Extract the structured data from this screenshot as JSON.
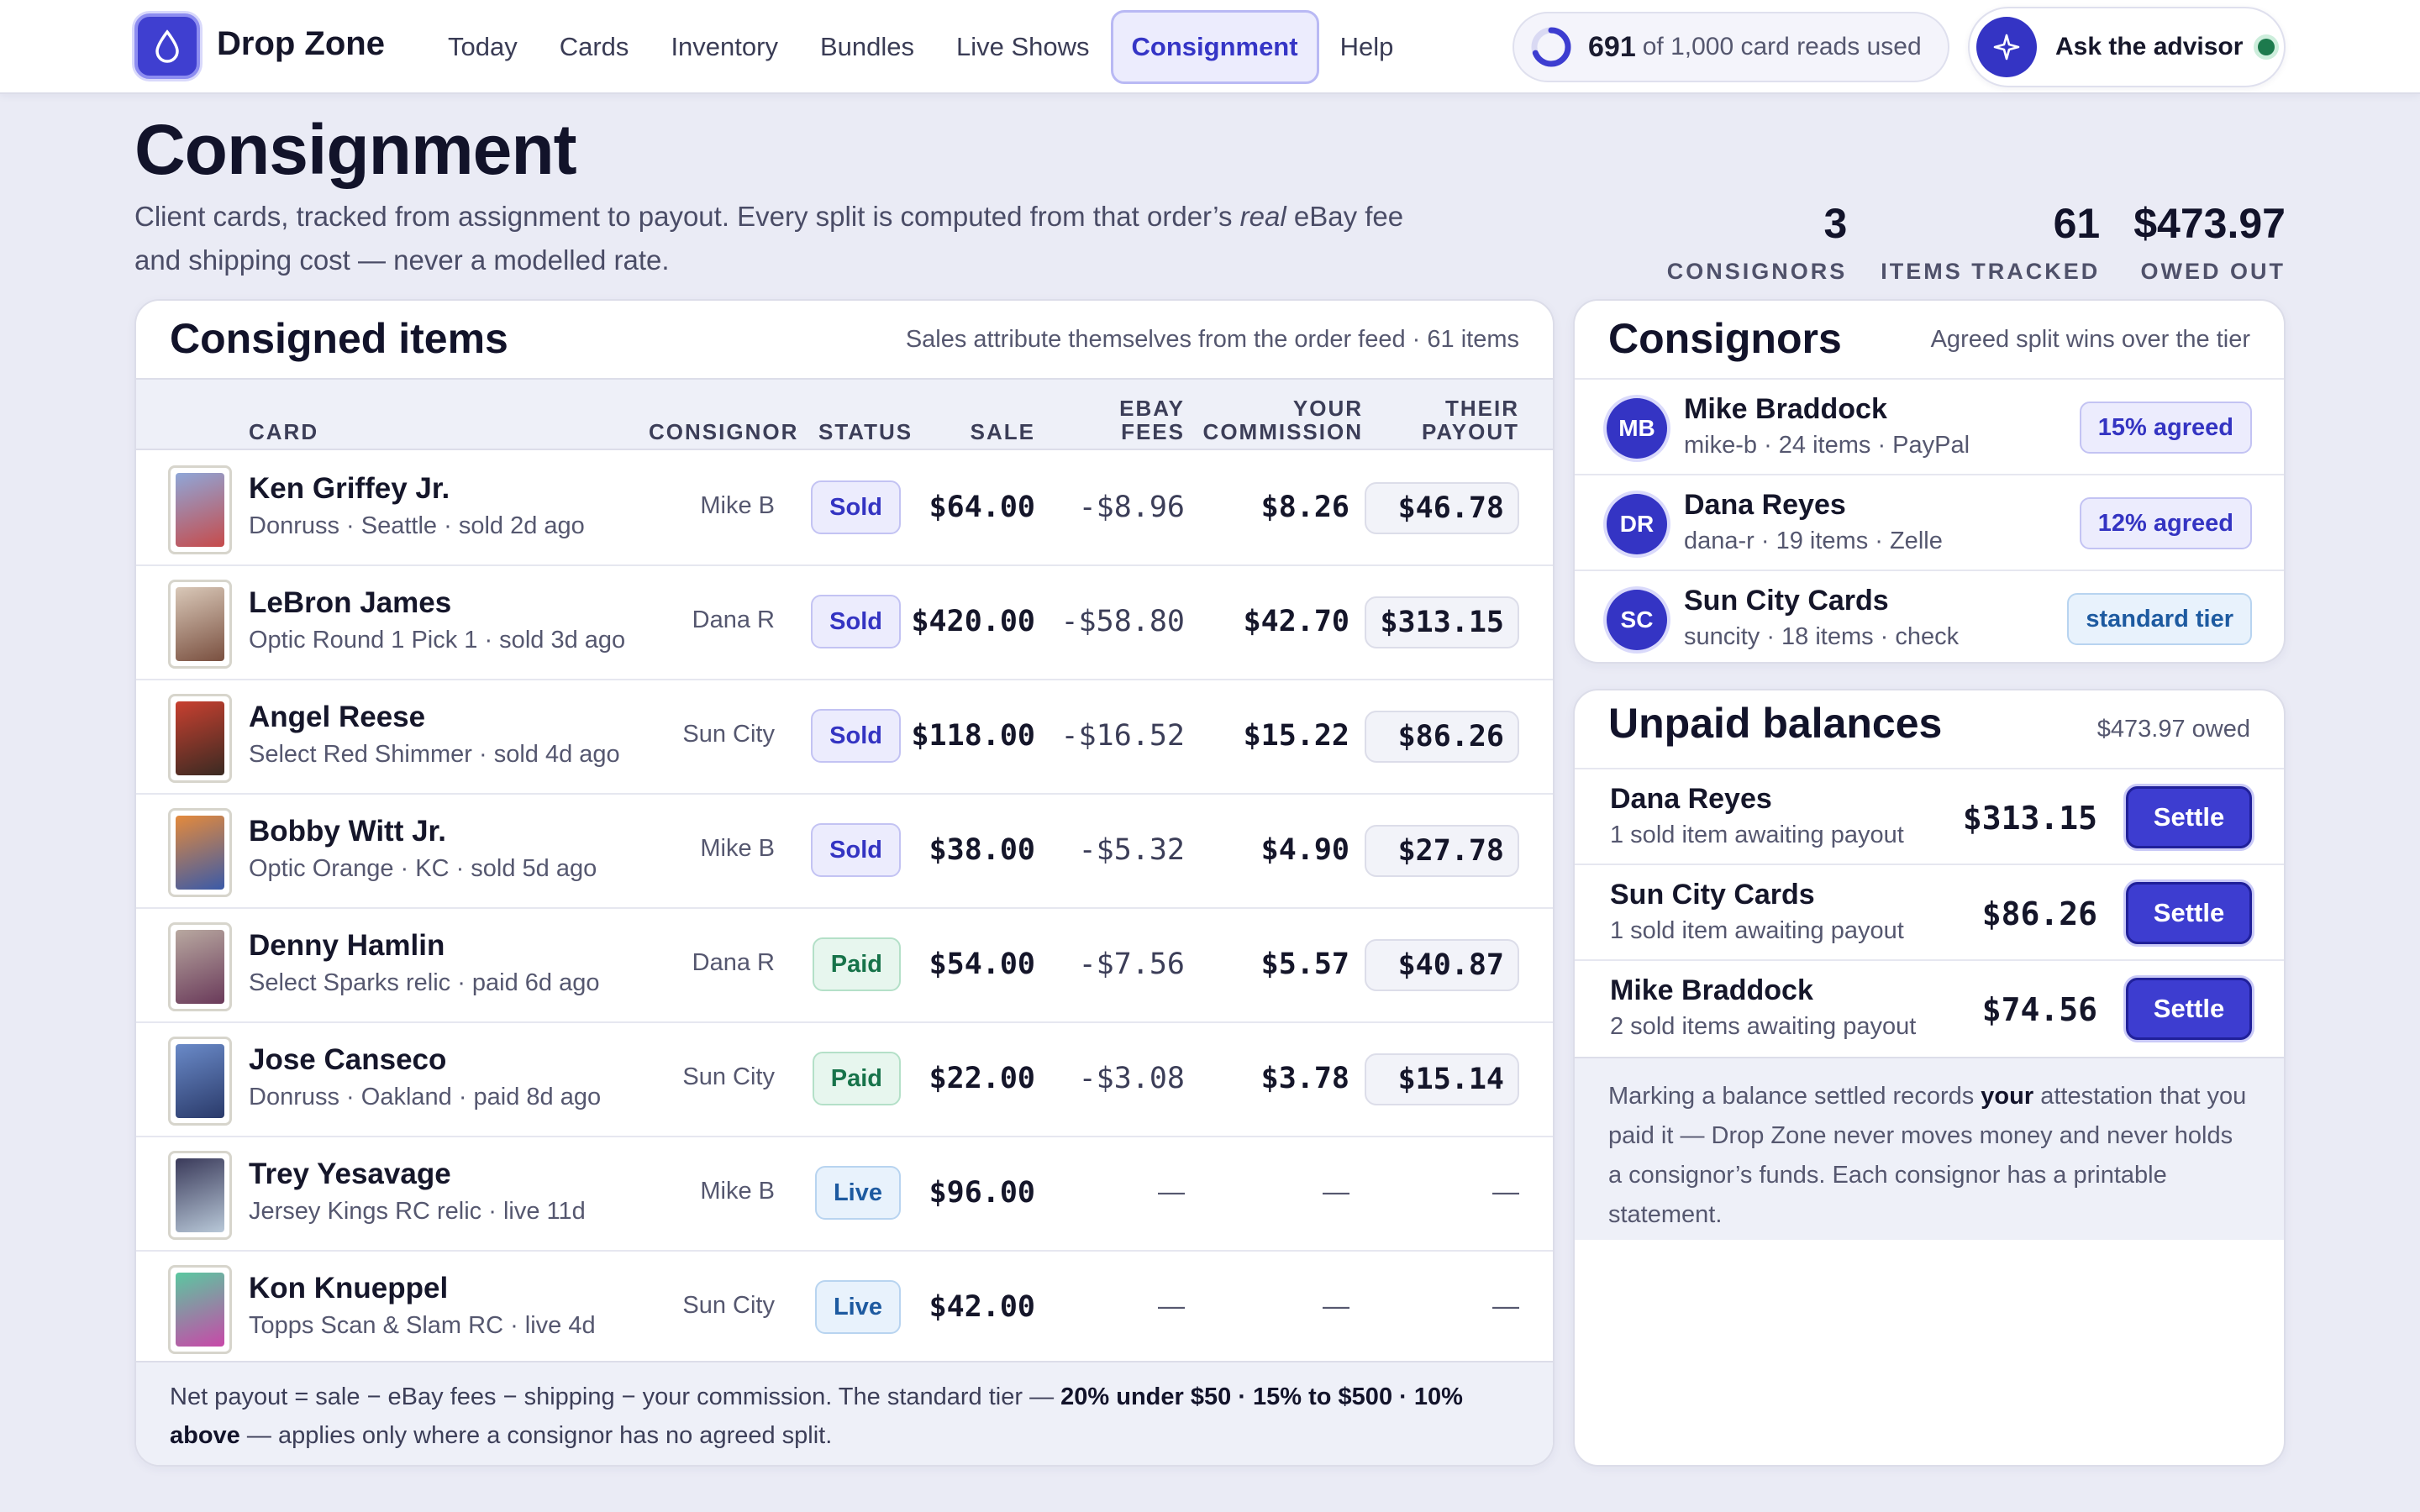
{
  "header": {
    "brand": "Drop Zone",
    "nav": [
      "Today",
      "Cards",
      "Inventory",
      "Bundles",
      "Live Shows",
      "Consignment",
      "Help"
    ],
    "active_nav": "Consignment",
    "reads_used": "691",
    "reads_rest": "of 1,000 card reads used",
    "reads_fraction": 0.691,
    "advisor_label": "Ask the advisor"
  },
  "page": {
    "title": "Consignment",
    "subtitle_a": "Client cards, tracked from assignment to payout. Every split is computed from that order’s ",
    "subtitle_em": "real",
    "subtitle_b": " eBay fee and shipping cost — never a modelled rate.",
    "stats": [
      {
        "value": "3",
        "label": "CONSIGNORS"
      },
      {
        "value": "61",
        "label": "ITEMS TRACKED"
      },
      {
        "value": "$473.97",
        "label": "OWED OUT"
      }
    ]
  },
  "items": {
    "title": "Consigned items",
    "note": "Sales attribute themselves from the order feed · 61 items",
    "columns": {
      "card": "CARD",
      "consignor": "CONSIGNOR",
      "status": "STATUS",
      "sale": "SALE",
      "fees_1": "EBAY",
      "fees_2": "FEES",
      "comm_1": "YOUR",
      "comm_2": "COMMISSION",
      "payout_1": "THEIR",
      "payout_2": "PAYOUT"
    },
    "rows": [
      {
        "name": "Ken Griffey Jr.",
        "meta": "Donruss · Seattle · sold 2d ago",
        "consignor": "Mike B",
        "status": "Sold",
        "sale": "$64.00",
        "fees": "-$8.96",
        "commission": "$8.26",
        "payout": "$46.78",
        "c1": "#8fa7d8",
        "c2": "#c64b4b"
      },
      {
        "name": "LeBron James",
        "meta": "Optic Round 1 Pick 1 · sold 3d ago",
        "consignor": "Dana R",
        "status": "Sold",
        "sale": "$420.00",
        "fees": "-$58.80",
        "commission": "$42.70",
        "payout": "$313.15",
        "c1": "#d9c8b8",
        "c2": "#7a5040"
      },
      {
        "name": "Angel Reese",
        "meta": "Select Red Shimmer · sold 4d ago",
        "consignor": "Sun City",
        "status": "Sold",
        "sale": "$118.00",
        "fees": "-$16.52",
        "commission": "$15.22",
        "payout": "$86.26",
        "c1": "#c84030",
        "c2": "#3a2a22"
      },
      {
        "name": "Bobby Witt Jr.",
        "meta": "Optic Orange · KC · sold 5d ago",
        "consignor": "Mike B",
        "status": "Sold",
        "sale": "$38.00",
        "fees": "-$5.32",
        "commission": "$4.90",
        "payout": "$27.78",
        "c1": "#e48a3c",
        "c2": "#3a5aa8"
      },
      {
        "name": "Denny Hamlin",
        "meta": "Select Sparks relic · paid 6d ago",
        "consignor": "Dana R",
        "status": "Paid",
        "sale": "$54.00",
        "fees": "-$7.56",
        "commission": "$5.57",
        "payout": "$40.87",
        "c1": "#b8a8a0",
        "c2": "#6a3a5a"
      },
      {
        "name": "Jose Canseco",
        "meta": "Donruss · Oakland · paid 8d ago",
        "consignor": "Sun City",
        "status": "Paid",
        "sale": "$22.00",
        "fees": "-$3.08",
        "commission": "$3.78",
        "payout": "$15.14",
        "c1": "#6a8ac8",
        "c2": "#2a3a6a"
      },
      {
        "name": "Trey Yesavage",
        "meta": "Jersey Kings RC relic · live 11d",
        "consignor": "Mike B",
        "status": "Live",
        "sale": "$96.00",
        "fees": "—",
        "commission": "—",
        "payout": "—",
        "c1": "#3a3a5a",
        "c2": "#b8c8d8"
      },
      {
        "name": "Kon Knueppel",
        "meta": "Topps Scan & Slam RC · live 4d",
        "consignor": "Sun City",
        "status": "Live",
        "sale": "$42.00",
        "fees": "—",
        "commission": "—",
        "payout": "—",
        "c1": "#5ac8a0",
        "c2": "#c848a8"
      }
    ],
    "footer_a": "Net payout = sale − eBay fees − shipping − your commission. The standard tier — ",
    "footer_b": "20% under $50 · 15% to $500 · 10% above",
    "footer_c": " — applies only where a consignor has no agreed split."
  },
  "consignors": {
    "title": "Consignors",
    "note": "Agreed split wins over the tier",
    "rows": [
      {
        "initials": "MB",
        "name": "Mike Braddock",
        "meta": "mike-b · 24 items · PayPal",
        "tier": "15% agreed",
        "kind": "agreed"
      },
      {
        "initials": "DR",
        "name": "Dana Reyes",
        "meta": "dana-r · 19 items · Zelle",
        "tier": "12% agreed",
        "kind": "agreed"
      },
      {
        "initials": "SC",
        "name": "Sun City Cards",
        "meta": "suncity · 18 items · check",
        "tier": "standard tier",
        "kind": "std"
      }
    ]
  },
  "unpaid": {
    "title": "Unpaid balances",
    "note": "$473.97 owed",
    "settle_label": "Settle",
    "rows": [
      {
        "name": "Dana Reyes",
        "meta": "1 sold item awaiting payout",
        "amount": "$313.15"
      },
      {
        "name": "Sun City Cards",
        "meta": "1 sold item awaiting payout",
        "amount": "$86.26"
      },
      {
        "name": "Mike Braddock",
        "meta": "2 sold items awaiting payout",
        "amount": "$74.56"
      }
    ],
    "note_a": "Marking a balance settled records ",
    "note_b": "your",
    "note_c": " attestation that you paid it — Drop Zone never moves money and never holds a consignor’s funds. Each consignor has a printable statement."
  },
  "colors": {
    "accent": "#3d3dd0",
    "paid": "#17734a",
    "live": "#1d5aa0"
  }
}
